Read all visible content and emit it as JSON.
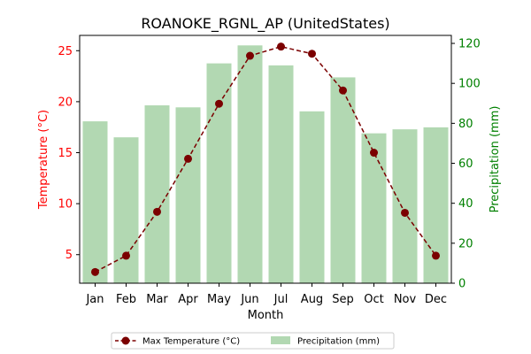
{
  "chart_data": {
    "type": "bar+line",
    "title": "ROANOKE_RGNL_AP (UnitedStates)",
    "xlabel": "Month",
    "ylabel_left": "Temperature (°C)",
    "ylabel_right": "Precipitation (mm)",
    "categories": [
      "Jan",
      "Feb",
      "Mar",
      "Apr",
      "May",
      "Jun",
      "Jul",
      "Aug",
      "Sep",
      "Oct",
      "Nov",
      "Dec"
    ],
    "ylim_left": [
      2.2,
      26.5
    ],
    "ylim_right": [
      0,
      124
    ],
    "yticks_left": [
      5,
      10,
      15,
      20,
      25
    ],
    "yticks_right": [
      0,
      20,
      40,
      60,
      80,
      100,
      120
    ],
    "series": [
      {
        "name": "Max Temperature (°C)",
        "kind": "line",
        "axis": "left",
        "color": "#7b0000",
        "values": [
          3.3,
          4.9,
          9.2,
          14.4,
          19.8,
          24.5,
          25.4,
          24.7,
          21.1,
          15.0,
          9.1,
          4.9
        ]
      },
      {
        "name": "Precipitation (mm)",
        "kind": "bar",
        "axis": "right",
        "color": "#b2d8b2",
        "values": [
          81,
          73,
          89,
          88,
          110,
          119,
          109,
          86,
          103,
          75,
          77,
          78
        ]
      }
    ],
    "legend_position": "bottom-center",
    "left_axis_color": "#ff0000",
    "right_axis_color": "#008000"
  }
}
